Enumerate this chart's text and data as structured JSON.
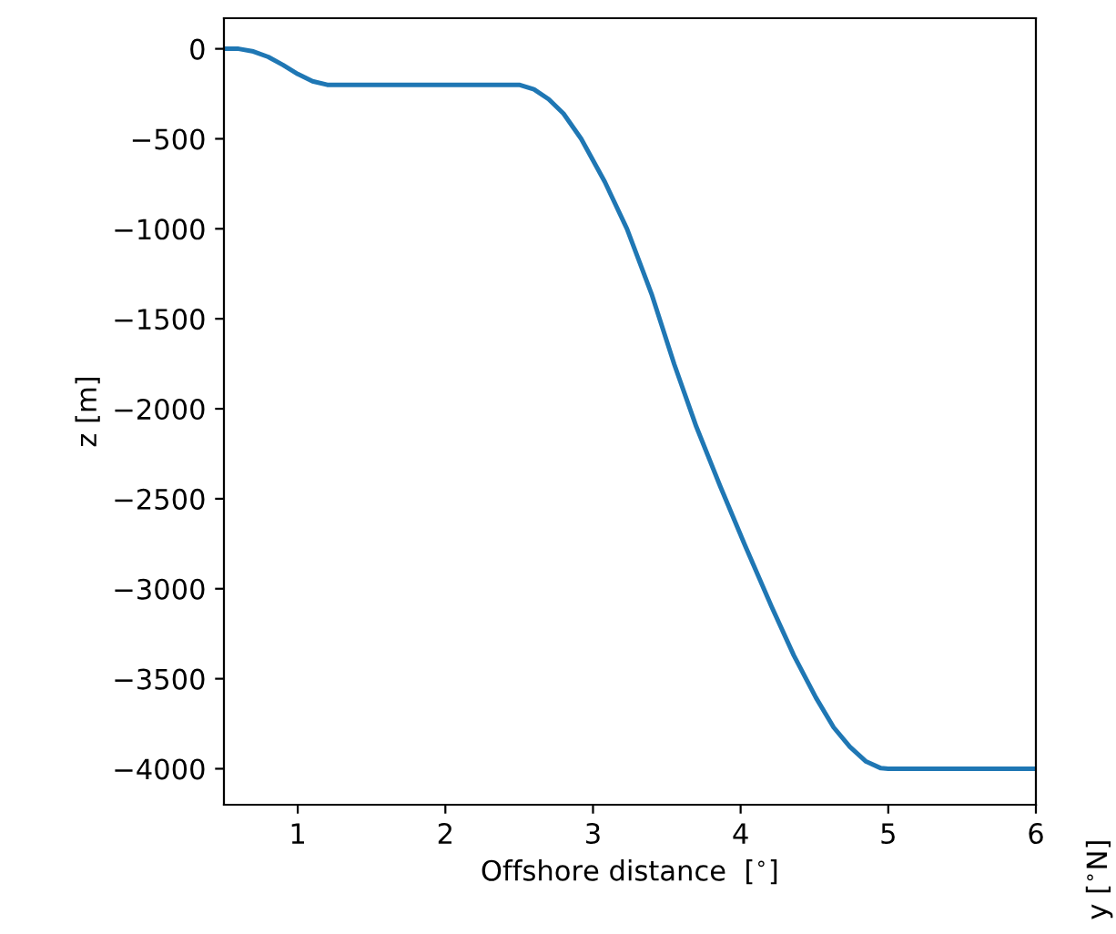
{
  "chart_data": {
    "type": "line",
    "xlabel": "Offshore distance  [$^{∘}$]",
    "ylabel": "z [m]",
    "annotations": [
      "y [$^{∘}$N]"
    ],
    "series": [
      {
        "color": "#1f77b4",
        "x": [
          0.5,
          0.6,
          0.7,
          0.8,
          0.9,
          1.0,
          1.1,
          1.2,
          2.5,
          2.6,
          2.7,
          2.8,
          2.92,
          3.08,
          3.23,
          3.4,
          3.55,
          3.7,
          3.86,
          4.03,
          4.21,
          4.36,
          4.51,
          4.63,
          4.74,
          4.85,
          4.95,
          5.0,
          6.0
        ],
        "values": [
          0,
          0,
          -15,
          -45,
          -90,
          -140,
          -180,
          -200,
          -200,
          -225,
          -280,
          -360,
          -500,
          -739,
          -1000,
          -1370,
          -1752,
          -2100,
          -2427,
          -2760,
          -3100,
          -3370,
          -3605,
          -3770,
          -3878,
          -3960,
          -3997,
          -4000,
          -4000
        ]
      }
    ],
    "xlim": [
      0.5,
      6
    ],
    "ylim": [
      -4200,
      170
    ],
    "xticks": [
      1,
      2,
      3,
      4,
      5,
      6
    ],
    "yticks": [
      {
        "value": 0,
        "label": "0"
      },
      {
        "value": -500,
        "label": "−500"
      },
      {
        "value": -1000,
        "label": "−1000"
      },
      {
        "value": -1500,
        "label": "−1500"
      },
      {
        "value": -2000,
        "label": "−2000"
      },
      {
        "value": -2500,
        "label": "−2500"
      },
      {
        "value": -3000,
        "label": "−3000"
      },
      {
        "value": -3500,
        "label": "−3500"
      },
      {
        "value": -4000,
        "label": "−4000"
      }
    ],
    "grid": false,
    "marker": "none",
    "line_style": "solid"
  }
}
